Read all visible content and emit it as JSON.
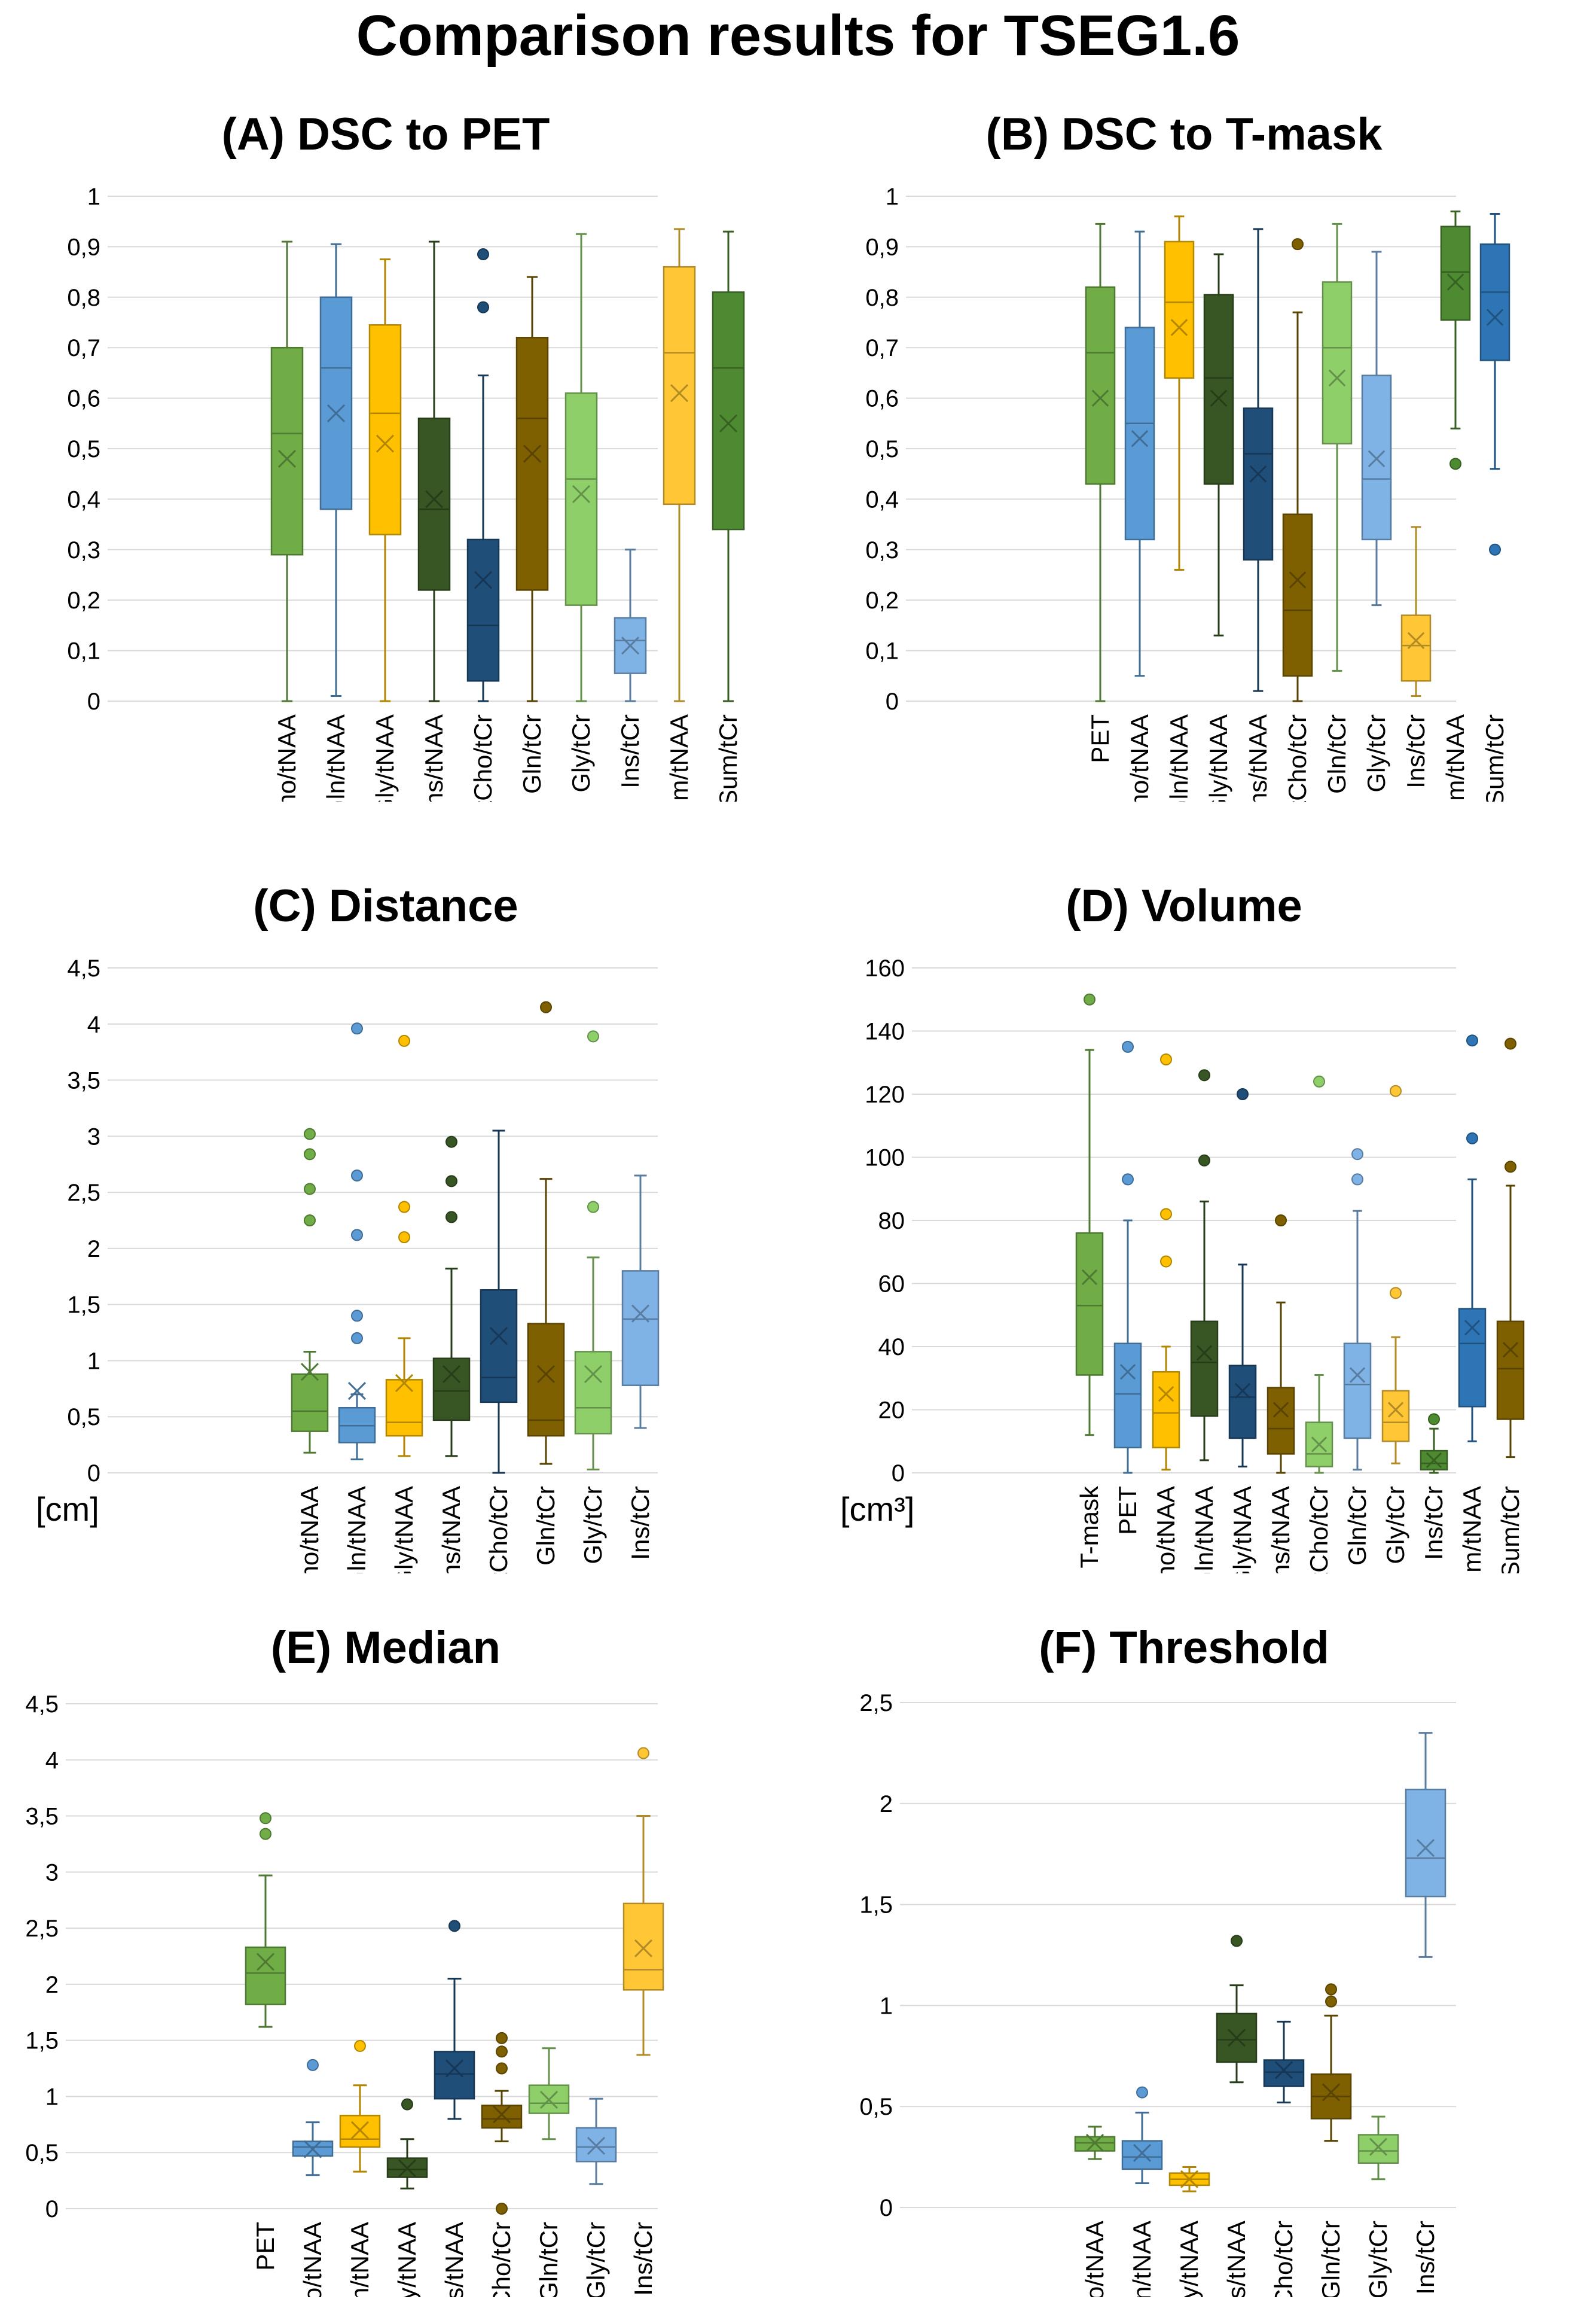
{
  "title": "Comparison results for TSEG1.6",
  "colors": {
    "light_green": "#70ad47",
    "mid_blue": "#5b9bd5",
    "gold": "#ffc000",
    "dark_green": "#375623",
    "dark_blue": "#1f4e79",
    "brown": "#7f6000",
    "pale_green": "#8fcf6a",
    "pale_blue": "#7fb2e5",
    "yellow": "#ffc736",
    "green": "#4e8a32",
    "blue": "#2e75b6"
  },
  "chart_data": [
    {
      "id": "A",
      "type": "box",
      "title": "(A) DSC to PET",
      "unit_label": "",
      "ylim": [
        0,
        1
      ],
      "ytick_step": 0.1,
      "ytick_labels": [
        "0",
        "0,1",
        "0,2",
        "0,3",
        "0,4",
        "0,5",
        "0,6",
        "0,7",
        "0,8",
        "0,9",
        "1"
      ],
      "categories": [
        "tCho/tNAA",
        "Gln/tNAA",
        "Gly/tNAA",
        "Ins/tNAA",
        "tCho/tCr",
        "Gln/tCr",
        "Gly/tCr",
        "Ins/tCr",
        "Sum/tNAA",
        "Sum/tCr"
      ],
      "colors": [
        "light_green",
        "mid_blue",
        "gold",
        "dark_green",
        "dark_blue",
        "brown",
        "pale_green",
        "pale_blue",
        "yellow",
        "green"
      ],
      "boxes": [
        {
          "min": 0,
          "q1": 0.29,
          "median": 0.53,
          "q3": 0.7,
          "max": 0.91,
          "mean": 0.48,
          "outliers": []
        },
        {
          "min": 0.01,
          "q1": 0.38,
          "median": 0.66,
          "q3": 0.8,
          "max": 0.905,
          "mean": 0.57,
          "outliers": []
        },
        {
          "min": 0,
          "q1": 0.33,
          "median": 0.57,
          "q3": 0.745,
          "max": 0.875,
          "mean": 0.51,
          "outliers": []
        },
        {
          "min": 0,
          "q1": 0.22,
          "median": 0.38,
          "q3": 0.56,
          "max": 0.91,
          "mean": 0.4,
          "outliers": []
        },
        {
          "min": 0,
          "q1": 0.04,
          "median": 0.15,
          "q3": 0.32,
          "max": 0.645,
          "mean": 0.24,
          "outliers": [
            0.78,
            0.885
          ]
        },
        {
          "min": 0,
          "q1": 0.22,
          "median": 0.56,
          "q3": 0.72,
          "max": 0.84,
          "mean": 0.49,
          "outliers": []
        },
        {
          "min": 0,
          "q1": 0.19,
          "median": 0.44,
          "q3": 0.61,
          "max": 0.925,
          "mean": 0.41,
          "outliers": []
        },
        {
          "min": 0,
          "q1": 0.055,
          "median": 0.12,
          "q3": 0.165,
          "max": 0.3,
          "mean": 0.11,
          "outliers": []
        },
        {
          "min": 0,
          "q1": 0.39,
          "median": 0.69,
          "q3": 0.86,
          "max": 0.935,
          "mean": 0.61,
          "outliers": []
        },
        {
          "min": 0,
          "q1": 0.34,
          "median": 0.66,
          "q3": 0.81,
          "max": 0.93,
          "mean": 0.55,
          "outliers": []
        }
      ]
    },
    {
      "id": "B",
      "type": "box",
      "title": "(B) DSC to T-mask",
      "unit_label": "",
      "ylim": [
        0,
        1
      ],
      "ytick_step": 0.1,
      "ytick_labels": [
        "0",
        "0,1",
        "0,2",
        "0,3",
        "0,4",
        "0,5",
        "0,6",
        "0,7",
        "0,8",
        "0,9",
        "1"
      ],
      "categories": [
        "PET",
        "tCho/tNAA",
        "Gln/tNAA",
        "Gly/tNAA",
        "Ins/tNAA",
        "tCho/tCr",
        "Gln/tCr",
        "Gly/tCr",
        "Ins/tCr",
        "Sum/tNAA",
        "Sum/tCr"
      ],
      "colors": [
        "light_green",
        "mid_blue",
        "gold",
        "dark_green",
        "dark_blue",
        "brown",
        "pale_green",
        "pale_blue",
        "yellow",
        "green",
        "blue"
      ],
      "boxes": [
        {
          "min": 0,
          "q1": 0.43,
          "median": 0.69,
          "q3": 0.82,
          "max": 0.945,
          "mean": 0.6,
          "outliers": []
        },
        {
          "min": 0.05,
          "q1": 0.32,
          "median": 0.55,
          "q3": 0.74,
          "max": 0.93,
          "mean": 0.52,
          "outliers": []
        },
        {
          "min": 0.26,
          "q1": 0.64,
          "median": 0.79,
          "q3": 0.91,
          "max": 0.96,
          "mean": 0.74,
          "outliers": []
        },
        {
          "min": 0.13,
          "q1": 0.43,
          "median": 0.64,
          "q3": 0.805,
          "max": 0.885,
          "mean": 0.6,
          "outliers": []
        },
        {
          "min": 0.02,
          "q1": 0.28,
          "median": 0.49,
          "q3": 0.58,
          "max": 0.935,
          "mean": 0.45,
          "outliers": []
        },
        {
          "min": 0,
          "q1": 0.05,
          "median": 0.18,
          "q3": 0.37,
          "max": 0.77,
          "mean": 0.24,
          "outliers": [
            0.905
          ]
        },
        {
          "min": 0.06,
          "q1": 0.51,
          "median": 0.7,
          "q3": 0.83,
          "max": 0.945,
          "mean": 0.64,
          "outliers": []
        },
        {
          "min": 0.19,
          "q1": 0.32,
          "median": 0.44,
          "q3": 0.645,
          "max": 0.89,
          "mean": 0.48,
          "outliers": []
        },
        {
          "min": 0.01,
          "q1": 0.04,
          "median": 0.11,
          "q3": 0.17,
          "max": 0.345,
          "mean": 0.12,
          "outliers": []
        },
        {
          "min": 0.54,
          "q1": 0.755,
          "median": 0.85,
          "q3": 0.94,
          "max": 0.97,
          "mean": 0.83,
          "outliers": [
            0.47
          ]
        },
        {
          "min": 0.46,
          "q1": 0.675,
          "median": 0.81,
          "q3": 0.905,
          "max": 0.965,
          "mean": 0.76,
          "outliers": [
            0.3
          ]
        }
      ]
    },
    {
      "id": "C",
      "type": "box",
      "title": "(C) Distance",
      "unit_label": "[cm]",
      "ylim": [
        0,
        4.5
      ],
      "ytick_step": 0.5,
      "ytick_labels": [
        "0",
        "0,5",
        "1",
        "1,5",
        "2",
        "2,5",
        "3",
        "3,5",
        "4",
        "4,5"
      ],
      "categories": [
        "tCho/tNAA",
        "Gln/tNAA",
        "Gly/tNAA",
        "Ins/tNAA",
        "tCho/tCr",
        "Gln/tCr",
        "Gly/tCr",
        "Ins/tCr"
      ],
      "colors": [
        "light_green",
        "mid_blue",
        "gold",
        "dark_green",
        "dark_blue",
        "brown",
        "pale_green",
        "pale_blue"
      ],
      "boxes": [
        {
          "min": 0.18,
          "q1": 0.37,
          "median": 0.55,
          "q3": 0.88,
          "max": 1.08,
          "mean": 0.9,
          "outliers": [
            2.25,
            2.53,
            2.84,
            3.02
          ]
        },
        {
          "min": 0.12,
          "q1": 0.27,
          "median": 0.42,
          "q3": 0.58,
          "max": 0.7,
          "mean": 0.73,
          "outliers": [
            1.2,
            1.4,
            2.12,
            2.65,
            3.96
          ]
        },
        {
          "min": 0.15,
          "q1": 0.33,
          "median": 0.45,
          "q3": 0.83,
          "max": 1.2,
          "mean": 0.8,
          "outliers": [
            2.1,
            2.37,
            3.85
          ]
        },
        {
          "min": 0.15,
          "q1": 0.47,
          "median": 0.73,
          "q3": 1.02,
          "max": 1.82,
          "mean": 0.88,
          "outliers": [
            2.28,
            2.6,
            2.95
          ]
        },
        {
          "min": 0,
          "q1": 0.63,
          "median": 0.85,
          "q3": 1.63,
          "max": 3.05,
          "mean": 1.22,
          "outliers": []
        },
        {
          "min": 0.08,
          "q1": 0.33,
          "median": 0.47,
          "q3": 1.33,
          "max": 2.62,
          "mean": 0.88,
          "outliers": [
            4.15
          ]
        },
        {
          "min": 0.03,
          "q1": 0.35,
          "median": 0.58,
          "q3": 1.08,
          "max": 1.92,
          "mean": 0.88,
          "outliers": [
            2.37,
            3.89
          ]
        },
        {
          "min": 0.4,
          "q1": 0.78,
          "median": 1.37,
          "q3": 1.8,
          "max": 2.65,
          "mean": 1.42,
          "outliers": []
        }
      ]
    },
    {
      "id": "D",
      "type": "box",
      "title": "(D) Volume",
      "unit_label": "[cm³]",
      "ylim": [
        0,
        160
      ],
      "ytick_step": 20,
      "ytick_labels": [
        "0",
        "20",
        "40",
        "60",
        "80",
        "100",
        "120",
        "140",
        "160"
      ],
      "categories": [
        "T-mask",
        "PET",
        "tCho/tNAA",
        "Gln/tNAA",
        "Gly/tNAA",
        "Ins/tNAA",
        "tCho/tCr",
        "Gln/tCr",
        "Gly/tCr",
        "Ins/tCr",
        "Sum/tNAA",
        "Sum/tCr"
      ],
      "colors": [
        "light_green",
        "mid_blue",
        "gold",
        "dark_green",
        "dark_blue",
        "brown",
        "pale_green",
        "pale_blue",
        "yellow",
        "green",
        "blue",
        "brown"
      ],
      "boxes": [
        {
          "min": 12,
          "q1": 31,
          "median": 53,
          "q3": 76,
          "max": 134,
          "mean": 62,
          "outliers": [
            150
          ]
        },
        {
          "min": 0,
          "q1": 8,
          "median": 25,
          "q3": 41,
          "max": 80,
          "mean": 32,
          "outliers": [
            93,
            135
          ]
        },
        {
          "min": 1,
          "q1": 8,
          "median": 19,
          "q3": 32,
          "max": 40,
          "mean": 25,
          "outliers": [
            67,
            82,
            131
          ]
        },
        {
          "min": 4,
          "q1": 18,
          "median": 35,
          "q3": 48,
          "max": 86,
          "mean": 38,
          "outliers": [
            99,
            126
          ]
        },
        {
          "min": 2,
          "q1": 11,
          "median": 24,
          "q3": 34,
          "max": 66,
          "mean": 26,
          "outliers": [
            120
          ]
        },
        {
          "min": 0,
          "q1": 6,
          "median": 14,
          "q3": 27,
          "max": 54,
          "mean": 20,
          "outliers": [
            80
          ]
        },
        {
          "min": 0,
          "q1": 2,
          "median": 6,
          "q3": 16,
          "max": 31,
          "mean": 9,
          "outliers": [
            124
          ]
        },
        {
          "min": 1,
          "q1": 11,
          "median": 28,
          "q3": 41,
          "max": 83,
          "mean": 31,
          "outliers": [
            93,
            101
          ]
        },
        {
          "min": 3,
          "q1": 10,
          "median": 16,
          "q3": 26,
          "max": 43,
          "mean": 20,
          "outliers": [
            57,
            121
          ]
        },
        {
          "min": 0,
          "q1": 1,
          "median": 3,
          "q3": 7,
          "max": 14,
          "mean": 4,
          "outliers": [
            17
          ]
        },
        {
          "min": 10,
          "q1": 21,
          "median": 41,
          "q3": 52,
          "max": 93,
          "mean": 46,
          "outliers": [
            106,
            137
          ]
        },
        {
          "min": 5,
          "q1": 17,
          "median": 33,
          "q3": 48,
          "max": 91,
          "mean": 39,
          "outliers": [
            97,
            136
          ]
        }
      ]
    },
    {
      "id": "E",
      "type": "box",
      "title": "(E) Median",
      "unit_label": "",
      "ylim": [
        0,
        4.5
      ],
      "ytick_step": 0.5,
      "ytick_labels": [
        "0",
        "0,5",
        "1",
        "1,5",
        "2",
        "2,5",
        "3",
        "3,5",
        "4",
        "4,5"
      ],
      "categories": [
        "PET",
        "tCho/tNAA",
        "Gln/tNAA",
        "Gly/tNAA",
        "Ins/tNAA",
        "tCho/tCr",
        "Gln/tCr",
        "Gly/tCr",
        "Ins/tCr"
      ],
      "colors": [
        "light_green",
        "mid_blue",
        "gold",
        "dark_green",
        "dark_blue",
        "brown",
        "pale_green",
        "pale_blue",
        "yellow"
      ],
      "boxes": [
        {
          "min": 1.62,
          "q1": 1.82,
          "median": 2.1,
          "q3": 2.33,
          "max": 2.97,
          "mean": 2.2,
          "outliers": [
            3.34,
            3.48
          ]
        },
        {
          "min": 0.3,
          "q1": 0.47,
          "median": 0.55,
          "q3": 0.6,
          "max": 0.77,
          "mean": 0.53,
          "outliers": [
            1.28
          ]
        },
        {
          "min": 0.33,
          "q1": 0.55,
          "median": 0.62,
          "q3": 0.83,
          "max": 1.1,
          "mean": 0.7,
          "outliers": [
            1.45
          ]
        },
        {
          "min": 0.18,
          "q1": 0.28,
          "median": 0.35,
          "q3": 0.45,
          "max": 0.62,
          "mean": 0.36,
          "outliers": [
            0.93
          ]
        },
        {
          "min": 0.8,
          "q1": 0.98,
          "median": 1.2,
          "q3": 1.4,
          "max": 2.05,
          "mean": 1.25,
          "outliers": [
            2.52
          ]
        },
        {
          "min": 0.6,
          "q1": 0.72,
          "median": 0.8,
          "q3": 0.92,
          "max": 1.05,
          "mean": 0.84,
          "outliers": [
            0,
            1.25,
            1.4,
            1.52
          ]
        },
        {
          "min": 0.62,
          "q1": 0.85,
          "median": 0.94,
          "q3": 1.1,
          "max": 1.43,
          "mean": 0.97,
          "outliers": []
        },
        {
          "min": 0.22,
          "q1": 0.42,
          "median": 0.55,
          "q3": 0.72,
          "max": 0.98,
          "mean": 0.56,
          "outliers": []
        },
        {
          "min": 1.37,
          "q1": 1.95,
          "median": 2.13,
          "q3": 2.72,
          "max": 3.5,
          "mean": 2.32,
          "outliers": [
            4.06
          ]
        }
      ]
    },
    {
      "id": "F",
      "type": "box",
      "title": "(F) Threshold",
      "unit_label": "",
      "ylim": [
        0,
        2.5
      ],
      "ytick_step": 0.5,
      "ytick_labels": [
        "0",
        "0,5",
        "1",
        "1,5",
        "2",
        "2,5"
      ],
      "categories": [
        "tCho/tNAA",
        "Gln/tNAA",
        "Gly/tNAA",
        "Ins/tNAA",
        "tCho/tCr",
        "Gln/tCr",
        "Gly/tCr",
        "Ins/tCr"
      ],
      "colors": [
        "light_green",
        "mid_blue",
        "gold",
        "dark_green",
        "dark_blue",
        "brown",
        "pale_green",
        "pale_blue"
      ],
      "boxes": [
        {
          "min": 0.24,
          "q1": 0.28,
          "median": 0.32,
          "q3": 0.35,
          "max": 0.4,
          "mean": 0.32,
          "outliers": []
        },
        {
          "min": 0.12,
          "q1": 0.19,
          "median": 0.25,
          "q3": 0.33,
          "max": 0.47,
          "mean": 0.27,
          "outliers": [
            0.57
          ]
        },
        {
          "min": 0.08,
          "q1": 0.11,
          "median": 0.14,
          "q3": 0.17,
          "max": 0.2,
          "mean": 0.14,
          "outliers": []
        },
        {
          "min": 0.62,
          "q1": 0.72,
          "median": 0.83,
          "q3": 0.96,
          "max": 1.1,
          "mean": 0.84,
          "outliers": [
            1.32
          ]
        },
        {
          "min": 0.52,
          "q1": 0.6,
          "median": 0.67,
          "q3": 0.73,
          "max": 0.92,
          "mean": 0.68,
          "outliers": []
        },
        {
          "min": 0.33,
          "q1": 0.44,
          "median": 0.55,
          "q3": 0.66,
          "max": 0.95,
          "mean": 0.57,
          "outliers": [
            1.02,
            1.08
          ]
        },
        {
          "min": 0.14,
          "q1": 0.22,
          "median": 0.28,
          "q3": 0.36,
          "max": 0.45,
          "mean": 0.3,
          "outliers": []
        },
        {
          "min": 1.24,
          "q1": 1.54,
          "median": 1.73,
          "q3": 2.07,
          "max": 2.35,
          "mean": 1.78,
          "outliers": []
        }
      ]
    }
  ]
}
